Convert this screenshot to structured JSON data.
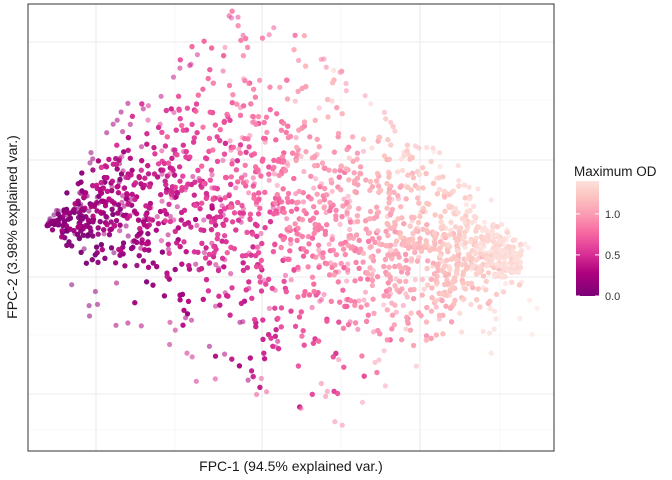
{
  "chart_data": {
    "type": "scatter",
    "title": "",
    "xlabel": "FPC-1 (94.5% explained var.)",
    "ylabel": "FPC-2 (3.98% explained var.)",
    "x_tick_labels_shown": false,
    "y_tick_labels_shown": false,
    "grid": true,
    "legend": {
      "title": "Maximum OD",
      "placement": "right",
      "type": "colorbar",
      "ticks": [
        {
          "value": 0.0,
          "label": "0.0"
        },
        {
          "value": 0.5,
          "label": "0.5"
        },
        {
          "value": 1.0,
          "label": "1.0"
        }
      ],
      "range": [
        0.0,
        1.4
      ]
    },
    "color_scale": {
      "low": "#7a0177",
      "stops": [
        "#7a0177",
        "#ae017e",
        "#dd3497",
        "#f768a1",
        "#fa9fb5",
        "#fcc5c0",
        "#fde0dd"
      ],
      "high": "#fde0dd"
    },
    "point_alpha": 0.55,
    "cloud_shape": {
      "description_points": [
        {
          "x": -0.75,
          "y": 0.05,
          "od": 0.0
        },
        {
          "x": -0.4,
          "y": 0.45,
          "od": 0.3
        },
        {
          "x": 0.0,
          "y": 1.0,
          "od": 0.6
        },
        {
          "x": 0.4,
          "y": 0.6,
          "od": 1.0
        },
        {
          "x": 0.75,
          "y": 0.05,
          "od": 1.35
        },
        {
          "x": 0.2,
          "y": -0.6,
          "od": 0.8
        },
        {
          "x": -0.35,
          "y": -0.35,
          "od": 0.25
        }
      ]
    }
  }
}
